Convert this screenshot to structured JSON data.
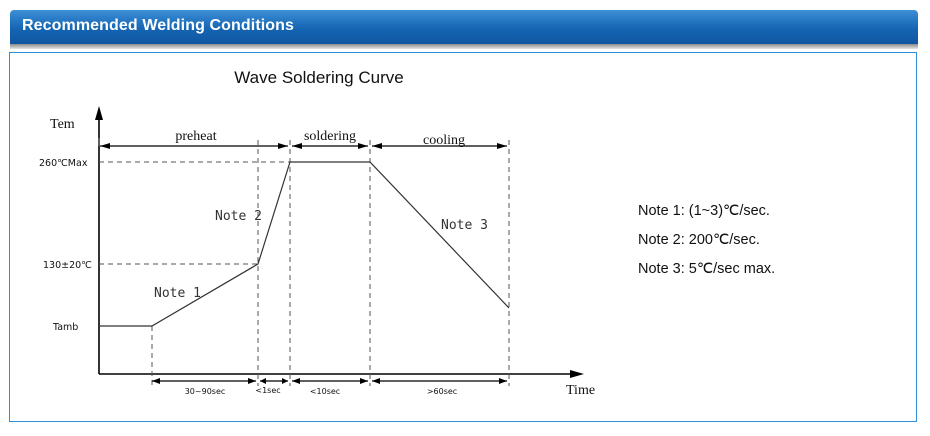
{
  "header": {
    "title": "Recommended Welding Conditions"
  },
  "diagram": {
    "title": "Wave Soldering Curve",
    "y_axis_label": "Tem",
    "x_axis_label": "Time",
    "y_labels": {
      "peak": "260℃Max",
      "mid": "130±20℃",
      "low": "Tamb"
    },
    "phases": {
      "preheat": "preheat",
      "soldering": "soldering",
      "cooling": "cooling"
    },
    "curve_notes": {
      "note1": "Note 1",
      "note2": "Note 2",
      "note3": "Note 3"
    },
    "durations": {
      "d1": "30~90sec",
      "d2": "<1sec",
      "d3": "<10sec",
      "d4": ">60sec"
    }
  },
  "notes": [
    "Note 1: (1~3)℃/sec.",
    "Note 2: 200℃/sec.",
    "Note 3: 5℃/sec max."
  ]
}
